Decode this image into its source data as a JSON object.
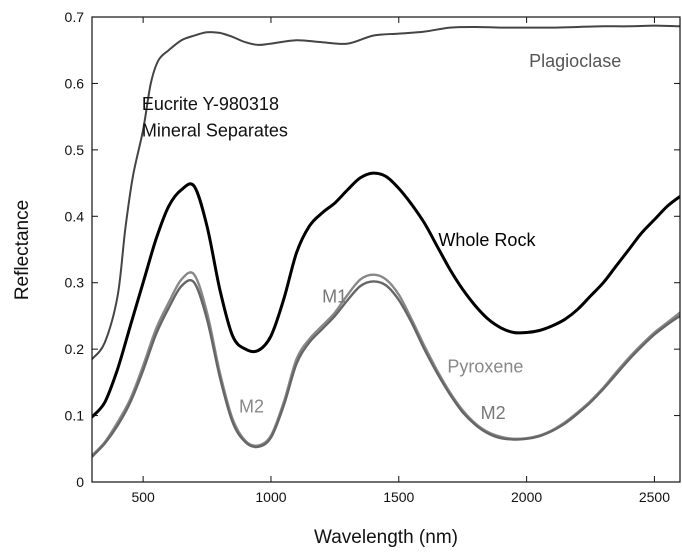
{
  "chart_data": {
    "type": "line",
    "title": "",
    "xlabel": "Wavelength (nm)",
    "ylabel": "Reflectance",
    "xlim": [
      300,
      2600
    ],
    "ylim": [
      0,
      0.7
    ],
    "xticks": [
      500,
      1000,
      1500,
      2000,
      2500
    ],
    "yticks": [
      0,
      0.1,
      0.2,
      0.3,
      0.4,
      0.5,
      0.6,
      0.7
    ],
    "grid": false,
    "legend": "none",
    "annotations": [
      {
        "text": "Eucrite Y-980318",
        "x": 495,
        "y": 0.56,
        "color": "#111111"
      },
      {
        "text": "Mineral Separates",
        "x": 495,
        "y": 0.52,
        "color": "#111111"
      },
      {
        "text": "Plagioclase",
        "x": 2010,
        "y": 0.625,
        "color": "#555555"
      },
      {
        "text": "Whole Rock",
        "x": 1655,
        "y": 0.355,
        "color": "#000000"
      },
      {
        "text": "M1",
        "x": 1200,
        "y": 0.27,
        "color": "#777777"
      },
      {
        "text": "Pyroxene",
        "x": 1690,
        "y": 0.165,
        "color": "#888888"
      },
      {
        "text": "M2",
        "x": 875,
        "y": 0.105,
        "color": "#888888"
      },
      {
        "text": "M2",
        "x": 1820,
        "y": 0.095,
        "color": "#777777"
      }
    ],
    "series": [
      {
        "color": "#444444",
        "x": [
          300,
          350,
          400,
          430,
          460,
          500,
          530,
          560,
          600,
          650,
          700,
          750,
          800,
          850,
          900,
          950,
          1000,
          1100,
          1200,
          1300,
          1400,
          1500,
          1600,
          1700,
          1800,
          1900,
          2000,
          2100,
          2200,
          2300,
          2400,
          2500,
          2600
        ],
        "y": [
          0.185,
          0.21,
          0.28,
          0.38,
          0.46,
          0.53,
          0.6,
          0.635,
          0.65,
          0.665,
          0.672,
          0.677,
          0.676,
          0.67,
          0.662,
          0.658,
          0.66,
          0.665,
          0.662,
          0.66,
          0.672,
          0.675,
          0.678,
          0.684,
          0.685,
          0.684,
          0.684,
          0.684,
          0.685,
          0.686,
          0.686,
          0.687,
          0.686
        ]
      },
      {
        "color": "#000000",
        "x": [
          300,
          350,
          400,
          450,
          500,
          550,
          600,
          650,
          700,
          750,
          800,
          850,
          900,
          950,
          1000,
          1050,
          1100,
          1150,
          1200,
          1250,
          1300,
          1350,
          1400,
          1450,
          1500,
          1550,
          1600,
          1650,
          1700,
          1750,
          1800,
          1850,
          1900,
          1950,
          2000,
          2050,
          2100,
          2150,
          2200,
          2250,
          2300,
          2350,
          2400,
          2450,
          2500,
          2550,
          2600
        ],
        "y": [
          0.098,
          0.12,
          0.17,
          0.235,
          0.3,
          0.365,
          0.415,
          0.44,
          0.445,
          0.385,
          0.29,
          0.22,
          0.2,
          0.198,
          0.22,
          0.275,
          0.345,
          0.385,
          0.405,
          0.42,
          0.44,
          0.458,
          0.465,
          0.46,
          0.442,
          0.418,
          0.39,
          0.355,
          0.32,
          0.29,
          0.265,
          0.245,
          0.232,
          0.225,
          0.225,
          0.228,
          0.235,
          0.245,
          0.26,
          0.28,
          0.3,
          0.325,
          0.35,
          0.375,
          0.395,
          0.415,
          0.43
        ]
      },
      {
        "color": "#888888",
        "x": [
          300,
          350,
          400,
          450,
          500,
          550,
          600,
          650,
          700,
          750,
          800,
          850,
          900,
          950,
          1000,
          1050,
          1100,
          1150,
          1200,
          1250,
          1300,
          1350,
          1400,
          1450,
          1500,
          1550,
          1600,
          1650,
          1700,
          1750,
          1800,
          1850,
          1900,
          1950,
          2000,
          2050,
          2100,
          2150,
          2200,
          2250,
          2300,
          2350,
          2400,
          2450,
          2500,
          2550,
          2600
        ],
        "y": [
          0.04,
          0.06,
          0.09,
          0.125,
          0.175,
          0.23,
          0.27,
          0.305,
          0.312,
          0.255,
          0.165,
          0.095,
          0.062,
          0.055,
          0.07,
          0.12,
          0.185,
          0.215,
          0.235,
          0.255,
          0.282,
          0.305,
          0.312,
          0.305,
          0.282,
          0.245,
          0.205,
          0.168,
          0.135,
          0.108,
          0.088,
          0.075,
          0.068,
          0.065,
          0.066,
          0.07,
          0.078,
          0.09,
          0.105,
          0.122,
          0.142,
          0.165,
          0.187,
          0.207,
          0.225,
          0.24,
          0.255
        ]
      },
      {
        "color": "#666666",
        "x": [
          300,
          350,
          400,
          450,
          500,
          550,
          600,
          650,
          700,
          750,
          800,
          850,
          900,
          950,
          1000,
          1050,
          1100,
          1150,
          1200,
          1250,
          1300,
          1350,
          1400,
          1450,
          1500,
          1550,
          1600,
          1650,
          1700,
          1750,
          1800,
          1850,
          1900,
          1950,
          2000,
          2050,
          2100,
          2150,
          2200,
          2250,
          2300,
          2350,
          2400,
          2450,
          2500,
          2550,
          2600
        ],
        "y": [
          0.038,
          0.058,
          0.085,
          0.12,
          0.168,
          0.222,
          0.262,
          0.295,
          0.3,
          0.245,
          0.158,
          0.09,
          0.06,
          0.053,
          0.067,
          0.115,
          0.178,
          0.21,
          0.23,
          0.25,
          0.274,
          0.295,
          0.302,
          0.296,
          0.274,
          0.24,
          0.2,
          0.164,
          0.132,
          0.105,
          0.086,
          0.073,
          0.066,
          0.064,
          0.065,
          0.069,
          0.077,
          0.088,
          0.103,
          0.12,
          0.14,
          0.162,
          0.184,
          0.204,
          0.222,
          0.237,
          0.25
        ]
      }
    ]
  }
}
